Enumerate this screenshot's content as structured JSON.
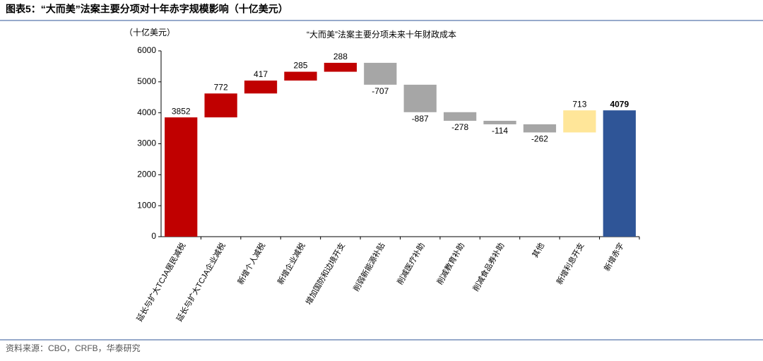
{
  "figure_title": "图表5：“大而美”法案主要分项对十年赤字规模影响（十亿美元）",
  "source": "资料来源：CBO，CRFB，华泰研究",
  "chart_data": {
    "type": "waterfall",
    "title": "“大而美”法案主要分项未来十年财政成本",
    "y_label": "（十亿美元）",
    "categories": [
      "延长与扩大TCJA居民减税",
      "延长与扩大TCJA企业减税",
      "新增个人减税",
      "新增企业减税",
      "增加国防和边境开支",
      "削弱新能源补贴",
      "削减医疗补助",
      "削减教育补助",
      "削减食品券补助",
      "其他",
      "新增利息开支",
      "新增赤字"
    ],
    "values": [
      3852,
      772,
      417,
      285,
      288,
      -707,
      -887,
      -278,
      -114,
      -262,
      713,
      4079
    ],
    "measure": [
      "relative",
      "relative",
      "relative",
      "relative",
      "relative",
      "relative",
      "relative",
      "relative",
      "relative",
      "relative",
      "relative",
      "total"
    ],
    "colors": [
      "#c00000",
      "#c00000",
      "#c00000",
      "#c00000",
      "#c00000",
      "#a6a6a6",
      "#a6a6a6",
      "#a6a6a6",
      "#a6a6a6",
      "#a6a6a6",
      "#ffe699",
      "#2f5597"
    ],
    "ylim": [
      0,
      6000
    ],
    "yticks": [
      0,
      1000,
      2000,
      3000,
      4000,
      5000,
      6000
    ]
  }
}
